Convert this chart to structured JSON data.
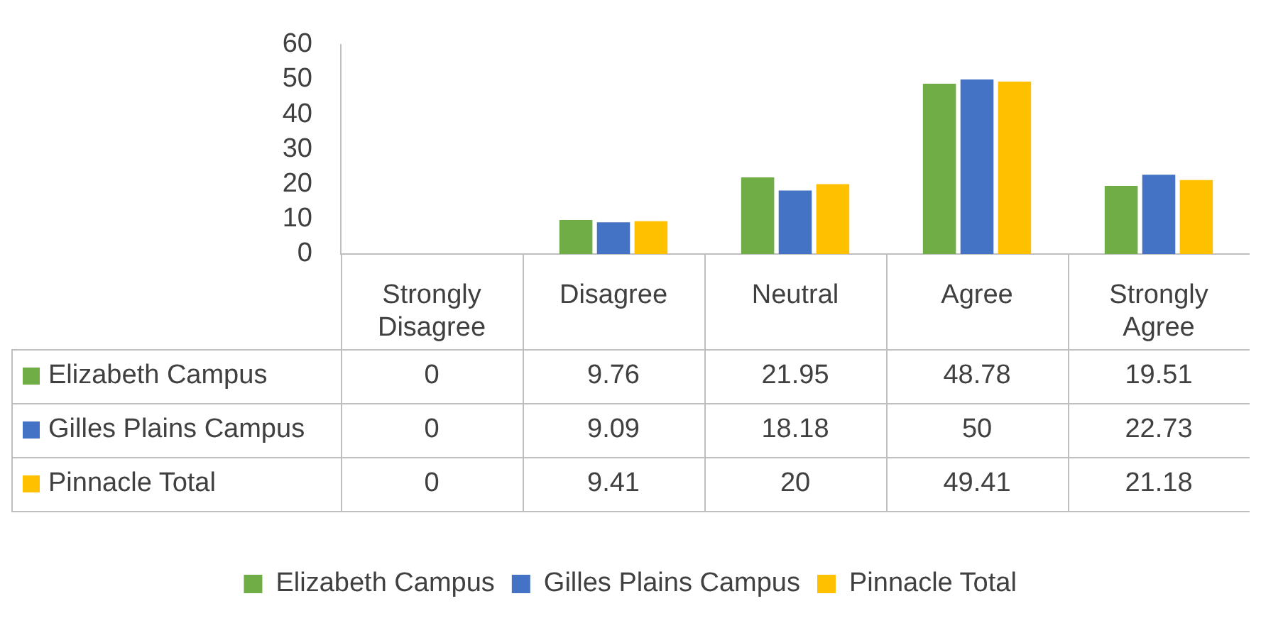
{
  "chart_data": {
    "type": "bar",
    "categories": [
      "Strongly Disagree",
      "Disagree",
      "Neutral",
      "Agree",
      "Strongly Agree"
    ],
    "series": [
      {
        "name": "Elizabeth Campus",
        "color": "#70ad47",
        "values": [
          0,
          9.76,
          21.95,
          48.78,
          19.51
        ]
      },
      {
        "name": "Gilles Plains Campus",
        "color": "#4472c4",
        "values": [
          0,
          9.09,
          18.18,
          50,
          22.73
        ]
      },
      {
        "name": "Pinnacle Total",
        "color": "#ffc000",
        "values": [
          0,
          9.41,
          20,
          49.41,
          21.18
        ]
      }
    ],
    "ylim": [
      0,
      60
    ],
    "yticks": [
      0,
      10,
      20,
      30,
      40,
      50,
      60
    ],
    "grid": false,
    "legend": "bottom",
    "data_labels": true
  }
}
